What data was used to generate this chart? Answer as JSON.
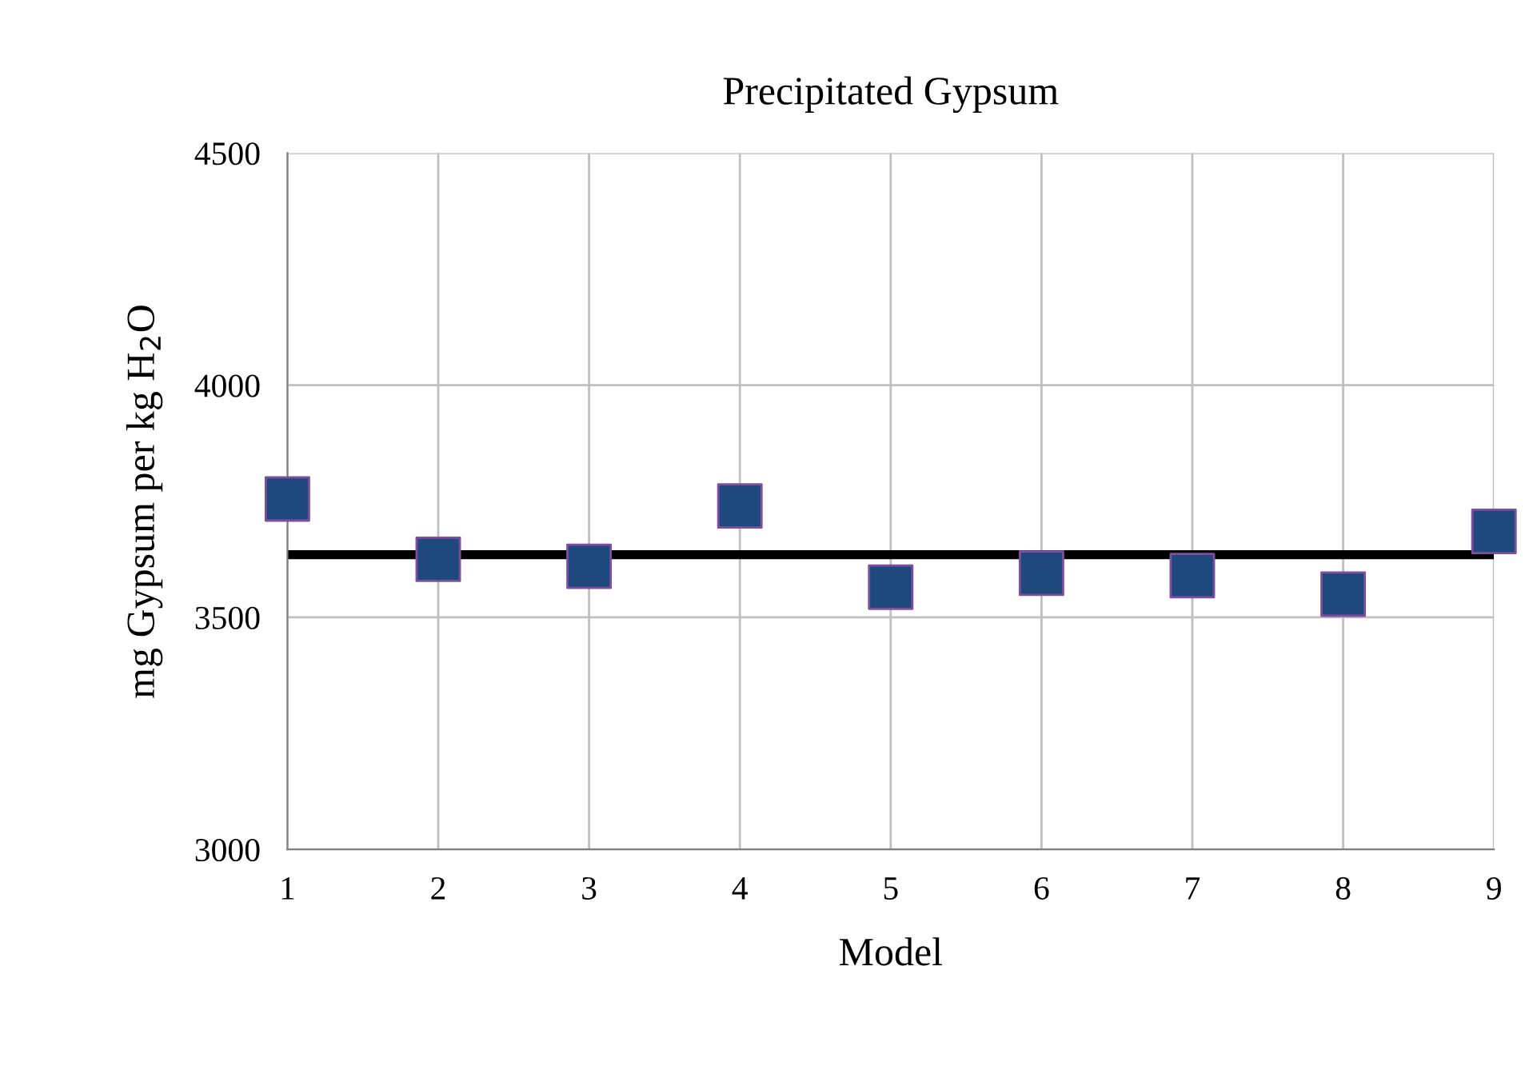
{
  "chart_data": {
    "type": "scatter",
    "title": "Precipitated Gypsum",
    "xlabel": "Model",
    "ylabel": "mg Gypsum per kg H$_{2}$O",
    "x": [
      1,
      2,
      3,
      4,
      5,
      6,
      7,
      8,
      9
    ],
    "series": [
      {
        "color": "#1f497d",
        "values": [
          3755,
          3625,
          3610,
          3740,
          3565,
          3595,
          3590,
          3550,
          3685
        ]
      }
    ],
    "ref_lines": [
      {
        "axis": "y",
        "value": 3635,
        "color": "#000000",
        "line_style": "solid"
      }
    ],
    "xlim": [
      1,
      9
    ],
    "xticks": [
      1,
      2,
      3,
      4,
      5,
      6,
      7,
      8,
      9
    ],
    "ylim": [
      3000,
      4500
    ],
    "yticks": [
      3000,
      3500,
      4000,
      4500
    ],
    "grid": true,
    "marker": "square"
  }
}
